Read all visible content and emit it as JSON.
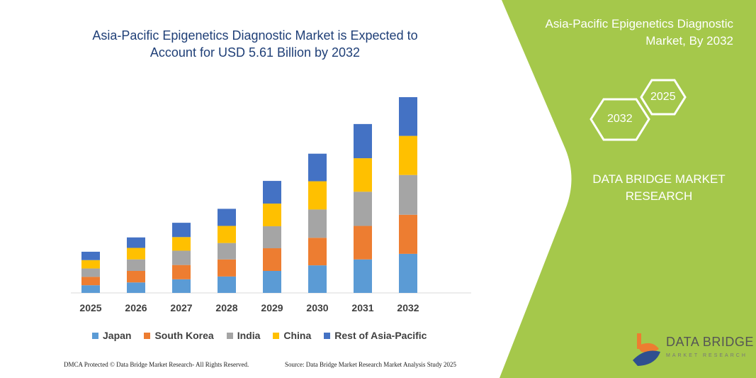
{
  "header": {
    "title": "Asia-Pacific Epigenetics Diagnostic Market is Expected to Account for USD 5.61 Billion by 2032"
  },
  "side_panel": {
    "title": "Asia-Pacific Epigenetics Diagnostic Market, By 2032",
    "hex_years": [
      "2025",
      "2032"
    ],
    "brand": "DATA BRIDGE MARKET RESEARCH",
    "logo_text": "DATA BRIDGE",
    "logo_subtext": "MARKET RESEARCH",
    "panel_color": "#a5c84b"
  },
  "footer": {
    "left": "DMCA Protected © Data Bridge Market Research- All Rights Reserved.",
    "right": "Source: Data Bridge Market Research Market Analysis Study 2025"
  },
  "chart_data": {
    "type": "bar",
    "stacked": true,
    "title": "Asia-Pacific Epigenetics Diagnostic Market is Expected to Account for USD 5.61 Billion by 2032",
    "xlabel": "",
    "ylabel": "",
    "ylim": [
      0,
      5.61
    ],
    "grid": false,
    "legend_position": "bottom",
    "categories": [
      "2025",
      "2026",
      "2027",
      "2028",
      "2029",
      "2030",
      "2031",
      "2032"
    ],
    "series": [
      {
        "name": "Japan",
        "color": "#5b9bd5",
        "values": [
          0.22,
          0.3,
          0.39,
          0.47,
          0.63,
          0.79,
          0.96,
          1.12
        ]
      },
      {
        "name": "South Korea",
        "color": "#ed7d31",
        "values": [
          0.24,
          0.33,
          0.41,
          0.49,
          0.65,
          0.79,
          0.96,
          1.12
        ]
      },
      {
        "name": "India",
        "color": "#a5a5a5",
        "values": [
          0.24,
          0.33,
          0.41,
          0.47,
          0.63,
          0.81,
          0.98,
          1.14
        ]
      },
      {
        "name": "China",
        "color": "#ffc000",
        "values": [
          0.24,
          0.33,
          0.39,
          0.49,
          0.65,
          0.81,
          0.96,
          1.12
        ]
      },
      {
        "name": "Rest of Asia-Pacific",
        "color": "#4472c4",
        "values": [
          0.24,
          0.3,
          0.41,
          0.49,
          0.65,
          0.79,
          0.98,
          1.11
        ]
      }
    ]
  }
}
